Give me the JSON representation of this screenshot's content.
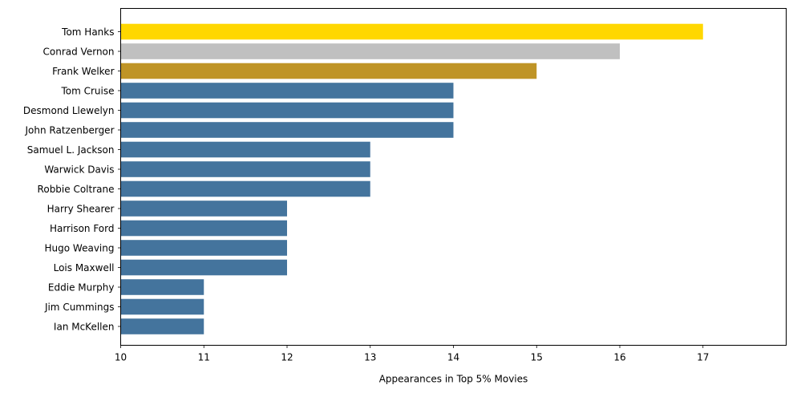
{
  "chart_data": {
    "type": "bar",
    "orientation": "horizontal",
    "title": "",
    "xlabel": "Appearances in Top 5% Movies",
    "ylabel": "",
    "xlim": [
      10,
      18
    ],
    "xticks": [
      10,
      11,
      12,
      13,
      14,
      15,
      16,
      17
    ],
    "grid": false,
    "legend": "none",
    "categories": [
      "Tom Hanks",
      "Conrad Vernon",
      "Frank Welker",
      "Tom Cruise",
      "Desmond Llewelyn",
      "John Ratzenberger",
      "Samuel L. Jackson",
      "Warwick Davis",
      "Robbie Coltrane",
      "Harry Shearer",
      "Harrison Ford",
      "Hugo Weaving",
      "Lois Maxwell",
      "Eddie Murphy",
      "Jim Cummings",
      "Ian McKellen"
    ],
    "values": [
      17,
      16,
      15,
      14,
      14,
      14,
      13,
      13,
      13,
      12,
      12,
      12,
      12,
      11,
      11,
      11
    ],
    "colors": [
      "#FFD700",
      "#C0C0C0",
      "#BF9426",
      "#44749D",
      "#44749D",
      "#44749D",
      "#44749D",
      "#44749D",
      "#44749D",
      "#44749D",
      "#44749D",
      "#44749D",
      "#44749D",
      "#44749D",
      "#44749D",
      "#44749D"
    ]
  }
}
